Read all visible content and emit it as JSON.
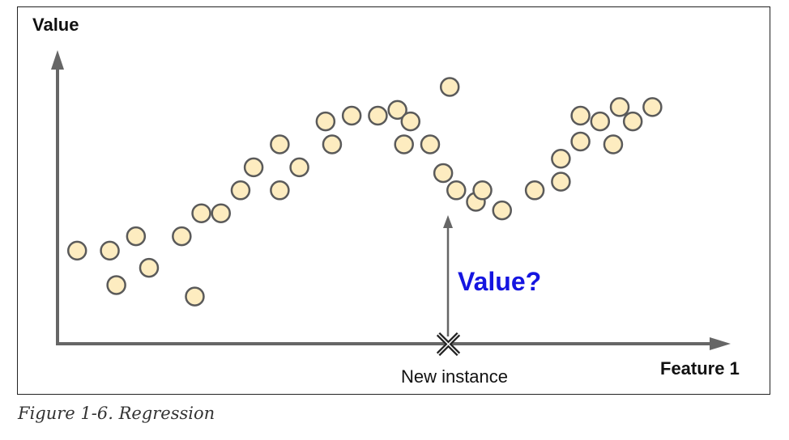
{
  "figure": {
    "y_axis_label": "Value",
    "x_axis_label": "Feature 1",
    "query_label": "Value?",
    "new_point_label": "New instance",
    "caption": "Figure 1-6. Regression"
  },
  "colors": {
    "point_fill": "#fdecc0",
    "point_stroke": "#5a5a5a",
    "axis": "#666666",
    "query_text": "#1515e0",
    "marker": "#222222"
  },
  "points": [
    {
      "x": 0.03,
      "y": 0.33
    },
    {
      "x": 0.08,
      "y": 0.33
    },
    {
      "x": 0.09,
      "y": 0.21
    },
    {
      "x": 0.12,
      "y": 0.38
    },
    {
      "x": 0.14,
      "y": 0.27
    },
    {
      "x": 0.19,
      "y": 0.38
    },
    {
      "x": 0.21,
      "y": 0.17
    },
    {
      "x": 0.22,
      "y": 0.46
    },
    {
      "x": 0.25,
      "y": 0.46
    },
    {
      "x": 0.28,
      "y": 0.54
    },
    {
      "x": 0.3,
      "y": 0.62
    },
    {
      "x": 0.34,
      "y": 0.54
    },
    {
      "x": 0.34,
      "y": 0.7
    },
    {
      "x": 0.37,
      "y": 0.62
    },
    {
      "x": 0.41,
      "y": 0.78
    },
    {
      "x": 0.42,
      "y": 0.7
    },
    {
      "x": 0.45,
      "y": 0.8
    },
    {
      "x": 0.49,
      "y": 0.8
    },
    {
      "x": 0.52,
      "y": 0.82
    },
    {
      "x": 0.54,
      "y": 0.78
    },
    {
      "x": 0.53,
      "y": 0.7
    },
    {
      "x": 0.57,
      "y": 0.7
    },
    {
      "x": 0.6,
      "y": 0.9
    },
    {
      "x": 0.59,
      "y": 0.6
    },
    {
      "x": 0.61,
      "y": 0.54
    },
    {
      "x": 0.64,
      "y": 0.5
    },
    {
      "x": 0.65,
      "y": 0.54
    },
    {
      "x": 0.68,
      "y": 0.47
    },
    {
      "x": 0.73,
      "y": 0.54
    },
    {
      "x": 0.77,
      "y": 0.57
    },
    {
      "x": 0.77,
      "y": 0.65
    },
    {
      "x": 0.8,
      "y": 0.71
    },
    {
      "x": 0.8,
      "y": 0.8
    },
    {
      "x": 0.83,
      "y": 0.78
    },
    {
      "x": 0.85,
      "y": 0.7
    },
    {
      "x": 0.86,
      "y": 0.83
    },
    {
      "x": 0.88,
      "y": 0.78
    },
    {
      "x": 0.91,
      "y": 0.83
    }
  ],
  "new_instance_x": 0.5775
}
